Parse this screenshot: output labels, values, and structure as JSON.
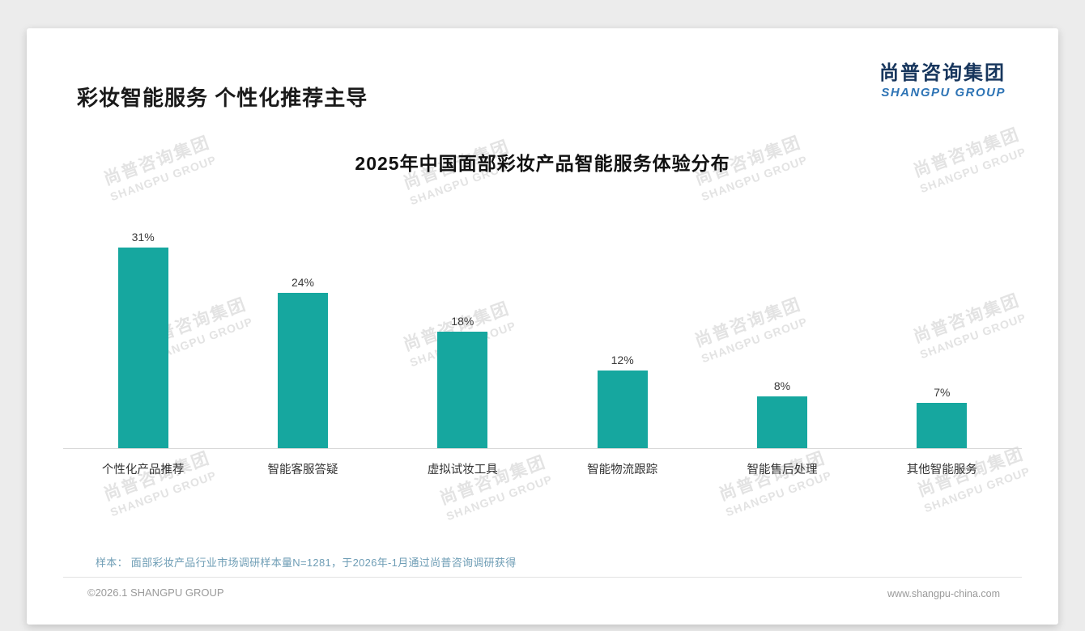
{
  "page": {
    "title": "彩妆智能服务 个性化推荐主导",
    "logo": {
      "cn": "尚普咨询集团",
      "en": "SHANGPU GROUP"
    },
    "watermark": {
      "line1": "尚普咨询集团",
      "line2": "SHANGPU GROUP"
    },
    "note": "样本： 面部彩妆产品行业市场调研样本量N=1281，于2026年-1月通过尚普咨询调研获得",
    "footer": {
      "left": "©2026.1 SHANGPU GROUP",
      "right": "www.shangpu-china.com"
    }
  },
  "chart_data": {
    "type": "bar",
    "title": "2025年中国面部彩妆产品智能服务体验分布",
    "categories": [
      "个性化产品推荐",
      "智能客服答疑",
      "虚拟试妆工具",
      "智能物流跟踪",
      "智能售后处理",
      "其他智能服务"
    ],
    "values": [
      31,
      24,
      18,
      12,
      8,
      7
    ],
    "value_labels": [
      "31%",
      "24%",
      "18%",
      "12%",
      "8%",
      "7%"
    ],
    "bar_color": "#16a79f",
    "xlabel": "",
    "ylabel": "",
    "ylim": [
      0,
      35
    ],
    "grid": false,
    "legend": false
  }
}
